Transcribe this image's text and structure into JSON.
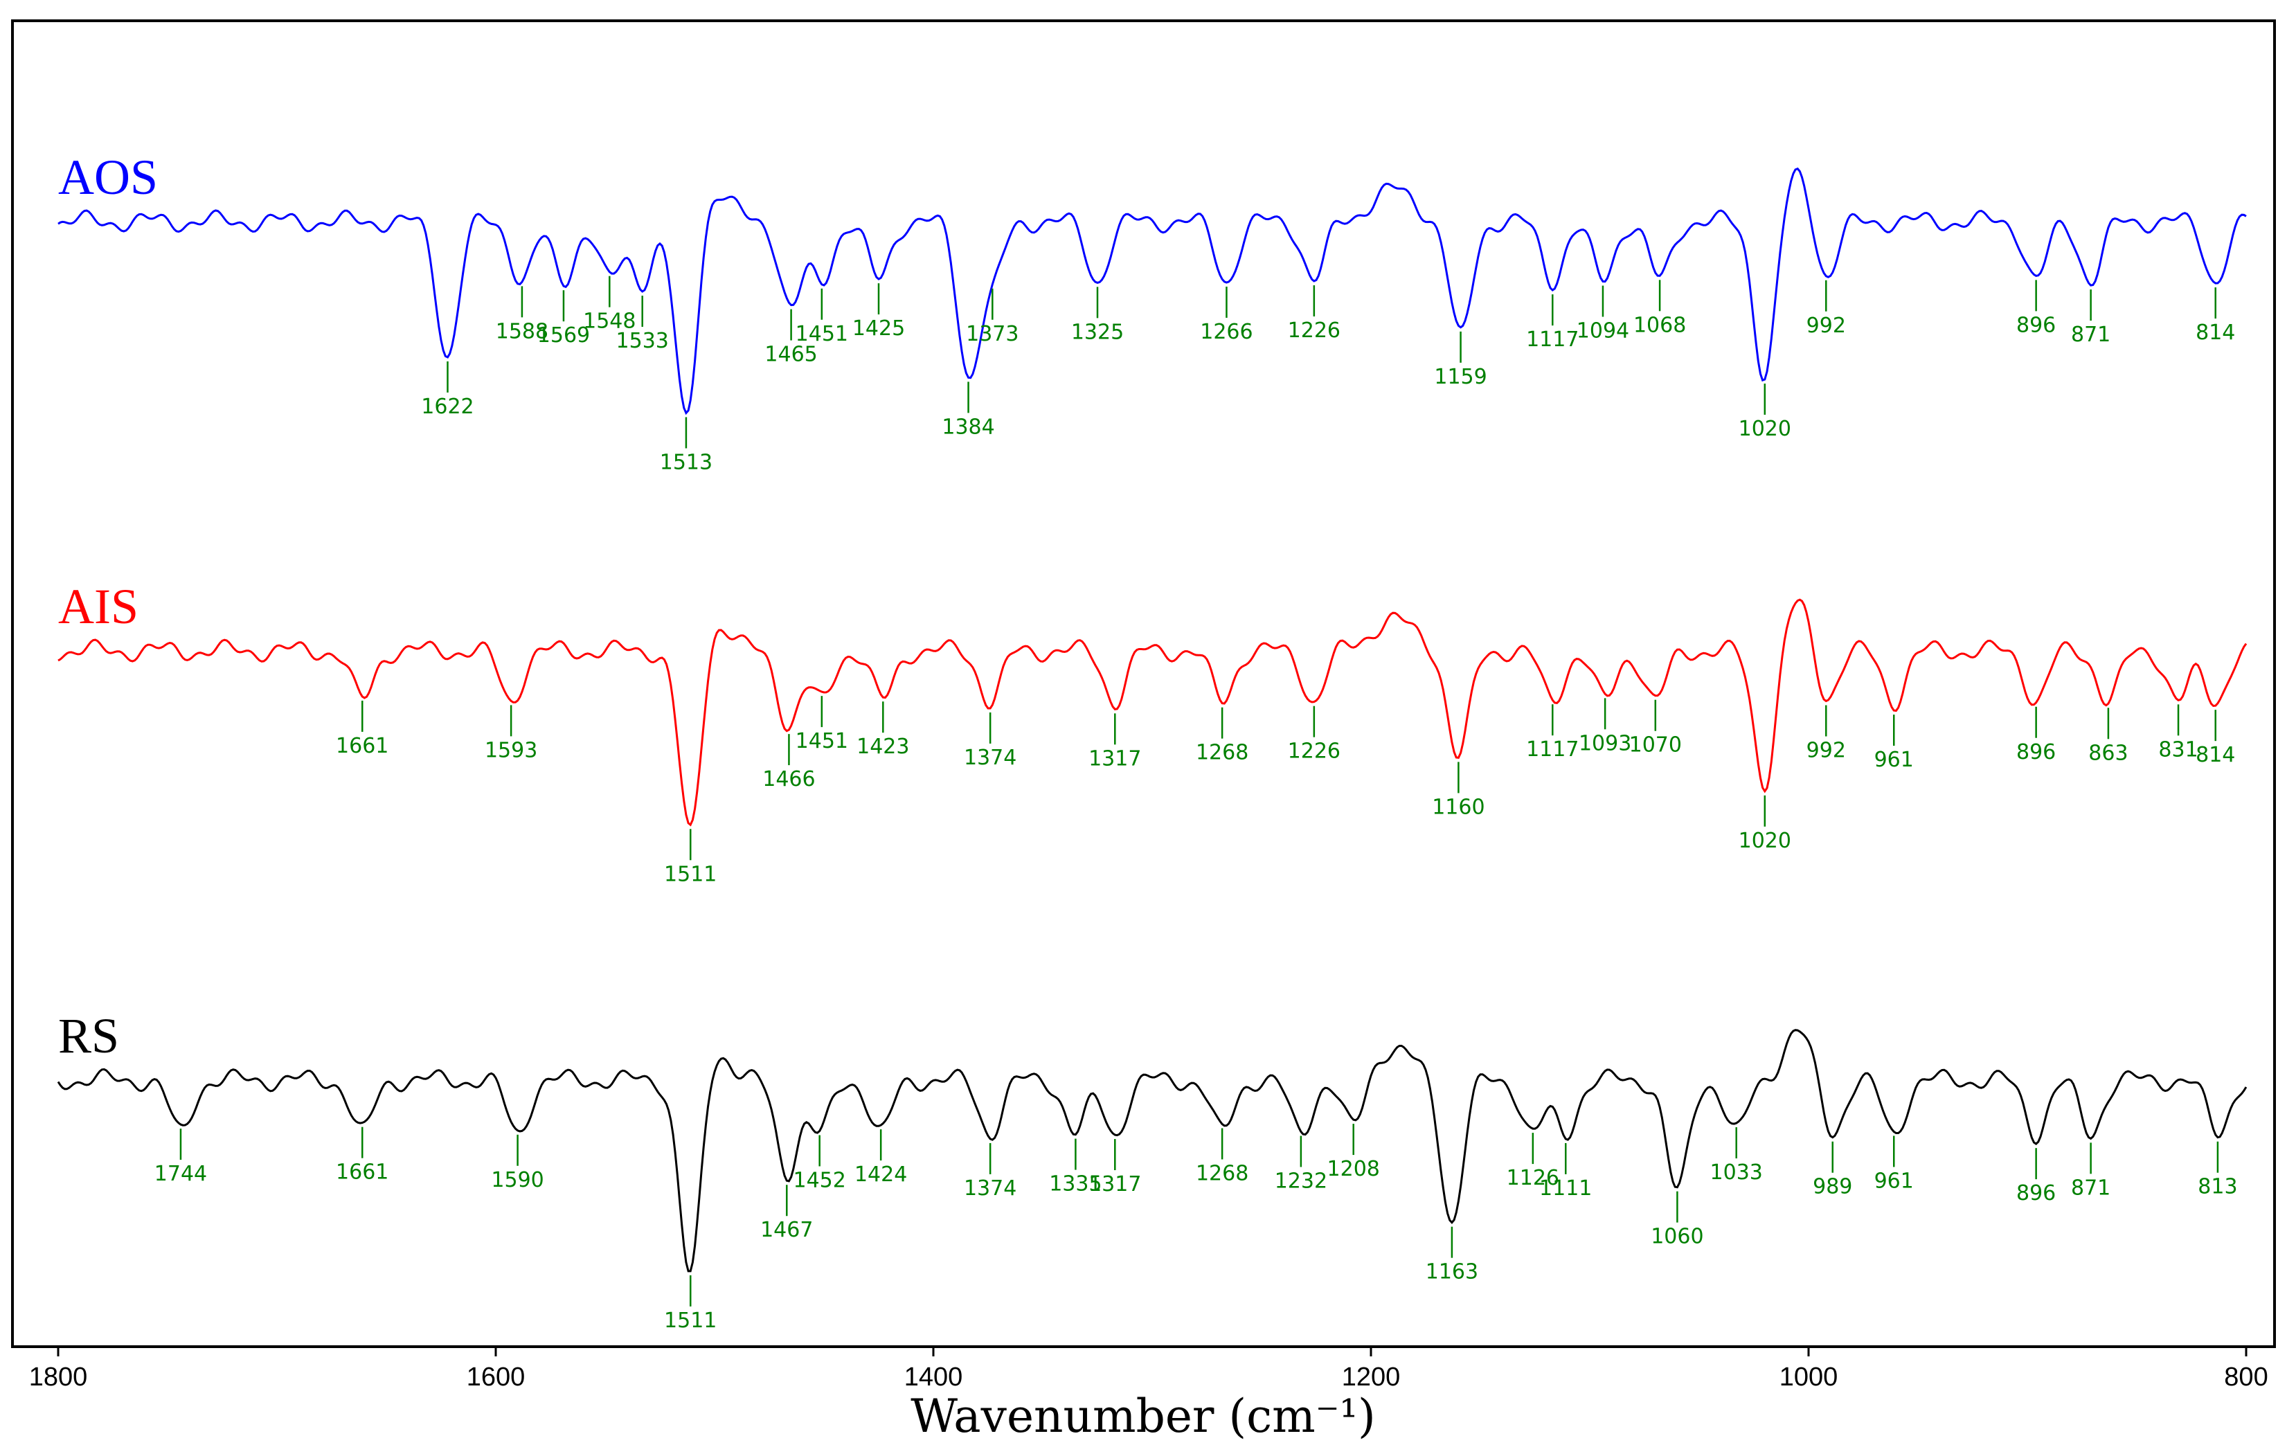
{
  "chart_data": {
    "type": "line",
    "title": "",
    "xlabel": "Wavenumber (cm⁻¹)",
    "ylabel": "",
    "xlim": [
      1800,
      800
    ],
    "x_reversed": true,
    "x_ticks": [
      1800,
      1600,
      1400,
      1200,
      1000,
      800
    ],
    "x_tick_labels": [
      "1800",
      "1600",
      "1400",
      "1200",
      "1000",
      "800"
    ],
    "y_ticks_shown": false,
    "grid": false,
    "legend": "inline labels at left",
    "peak_label_color": "#008000",
    "series": [
      {
        "name": "AOS",
        "color": "#0000ff",
        "peaks": [
          {
            "x": 1622,
            "label": "1622"
          },
          {
            "x": 1588,
            "label": "1588"
          },
          {
            "x": 1569,
            "label": "1569"
          },
          {
            "x": 1548,
            "label": "1548"
          },
          {
            "x": 1533,
            "label": "1533"
          },
          {
            "x": 1513,
            "label": "1513"
          },
          {
            "x": 1465,
            "label": "1465"
          },
          {
            "x": 1451,
            "label": "1451"
          },
          {
            "x": 1425,
            "label": "1425"
          },
          {
            "x": 1384,
            "label": "1384"
          },
          {
            "x": 1373,
            "label": "1373"
          },
          {
            "x": 1325,
            "label": "1325"
          },
          {
            "x": 1266,
            "label": "1266"
          },
          {
            "x": 1226,
            "label": "1226"
          },
          {
            "x": 1159,
            "label": "1159"
          },
          {
            "x": 1117,
            "label": "1117"
          },
          {
            "x": 1094,
            "label": "1094"
          },
          {
            "x": 1068,
            "label": "1068"
          },
          {
            "x": 1020,
            "label": "1020"
          },
          {
            "x": 992,
            "label": "992"
          },
          {
            "x": 896,
            "label": "896"
          },
          {
            "x": 871,
            "label": "871"
          },
          {
            "x": 814,
            "label": "814"
          }
        ]
      },
      {
        "name": "AIS",
        "color": "#ff0000",
        "peaks": [
          {
            "x": 1661,
            "label": "1661"
          },
          {
            "x": 1593,
            "label": "1593"
          },
          {
            "x": 1511,
            "label": "1511"
          },
          {
            "x": 1466,
            "label": "1466"
          },
          {
            "x": 1451,
            "label": "1451"
          },
          {
            "x": 1423,
            "label": "1423"
          },
          {
            "x": 1374,
            "label": "1374"
          },
          {
            "x": 1317,
            "label": "1317"
          },
          {
            "x": 1268,
            "label": "1268"
          },
          {
            "x": 1226,
            "label": "1226"
          },
          {
            "x": 1160,
            "label": "1160"
          },
          {
            "x": 1117,
            "label": "1117"
          },
          {
            "x": 1093,
            "label": "1093"
          },
          {
            "x": 1070,
            "label": "1070"
          },
          {
            "x": 1020,
            "label": "1020"
          },
          {
            "x": 992,
            "label": "992"
          },
          {
            "x": 961,
            "label": "961"
          },
          {
            "x": 896,
            "label": "896"
          },
          {
            "x": 863,
            "label": "863"
          },
          {
            "x": 831,
            "label": "831"
          },
          {
            "x": 814,
            "label": "814"
          }
        ]
      },
      {
        "name": "RS",
        "color": "#000000",
        "peaks": [
          {
            "x": 1744,
            "label": "1744"
          },
          {
            "x": 1661,
            "label": "1661"
          },
          {
            "x": 1590,
            "label": "1590"
          },
          {
            "x": 1511,
            "label": "1511"
          },
          {
            "x": 1467,
            "label": "1467"
          },
          {
            "x": 1452,
            "label": "1452"
          },
          {
            "x": 1424,
            "label": "1424"
          },
          {
            "x": 1374,
            "label": "1374"
          },
          {
            "x": 1335,
            "label": "1335"
          },
          {
            "x": 1317,
            "label": "1317"
          },
          {
            "x": 1268,
            "label": "1268"
          },
          {
            "x": 1232,
            "label": "1232"
          },
          {
            "x": 1208,
            "label": "1208"
          },
          {
            "x": 1163,
            "label": "1163"
          },
          {
            "x": 1126,
            "label": "1126"
          },
          {
            "x": 1111,
            "label": "1111"
          },
          {
            "x": 1060,
            "label": "1060"
          },
          {
            "x": 1033,
            "label": "1033"
          },
          {
            "x": 989,
            "label": "989"
          },
          {
            "x": 961,
            "label": "961"
          },
          {
            "x": 896,
            "label": "896"
          },
          {
            "x": 871,
            "label": "871"
          },
          {
            "x": 813,
            "label": "813"
          }
        ]
      }
    ]
  }
}
